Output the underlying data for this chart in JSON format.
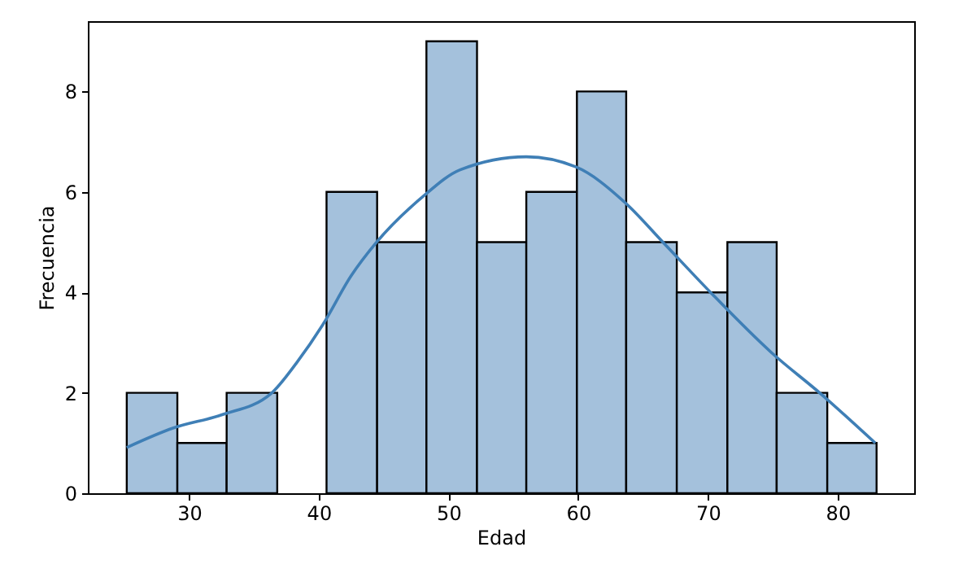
{
  "chart_data": {
    "type": "histogram",
    "xlabel": "Edad",
    "ylabel": "Frecuencia",
    "bins": [
      25.2,
      29.1,
      32.9,
      36.8,
      40.6,
      44.5,
      48.3,
      52.2,
      56.0,
      59.9,
      63.7,
      67.6,
      71.5,
      75.3,
      79.2,
      83.0
    ],
    "series": [
      {
        "color": "#a4c1dc",
        "values": [
          2,
          1,
          2,
          0,
          6,
          5,
          9,
          5,
          6,
          8,
          5,
          4,
          5,
          2,
          1
        ]
      },
      {
        "type": "line",
        "color": "#3f7fb6",
        "x": [
          25.2,
          28.8,
          32.5,
          36.3,
          38.3,
          40.3,
          42.5,
          44.4,
          48.0,
          50.9,
          56.0,
          59.8,
          63.6,
          66.6,
          70.2,
          74.9,
          78.7,
          82.9
        ],
        "values": [
          0.91,
          1.3,
          1.56,
          1.98,
          2.6,
          3.35,
          4.33,
          4.98,
          5.9,
          6.44,
          6.7,
          6.5,
          5.79,
          4.98,
          4.0,
          2.8,
          1.98,
          1.0
        ]
      }
    ],
    "xlim": [
      22.2,
      85.9
    ],
    "xticks": [
      30,
      40,
      50,
      60,
      70,
      80
    ],
    "ylim": [
      0,
      9.4
    ],
    "yticks": [
      0,
      2,
      4,
      6,
      8
    ],
    "grid": false
  }
}
